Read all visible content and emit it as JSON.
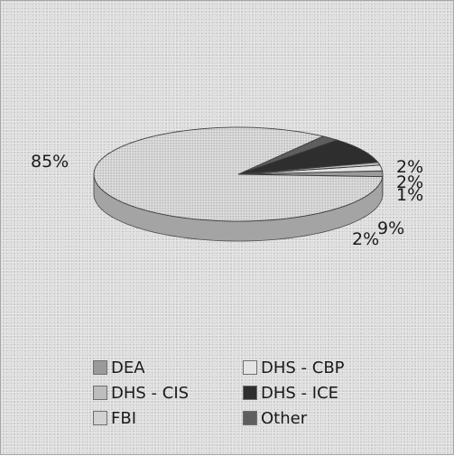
{
  "chart_data": {
    "type": "pie",
    "style": "3d",
    "slices": [
      {
        "name": "DEA",
        "value": 2,
        "label": "2%",
        "color": "#9a9a9a"
      },
      {
        "name": "DHS - CBP",
        "value": 2,
        "label": "2%",
        "color": "#e4e4e4"
      },
      {
        "name": "DHS - CIS",
        "value": 1,
        "label": "1%",
        "color": "#bdbdbd"
      },
      {
        "name": "DHS - ICE",
        "value": 9,
        "label": "9%",
        "color": "#2e2e2e"
      },
      {
        "name": "Other",
        "value": 2,
        "label": "2%",
        "color": "#5e5e5e"
      },
      {
        "name": "FBI",
        "value": 85,
        "label": "85%",
        "color": "#d2d2d2"
      }
    ],
    "legend": {
      "position": "bottom",
      "items": [
        "DEA",
        "DHS - CBP",
        "DHS - CIS",
        "DHS - ICE",
        "FBI",
        "Other"
      ],
      "colors": [
        "#9a9a9a",
        "#e4e4e4",
        "#bdbdbd",
        "#2e2e2e",
        "#d2d2d2",
        "#5e5e5e"
      ]
    }
  }
}
